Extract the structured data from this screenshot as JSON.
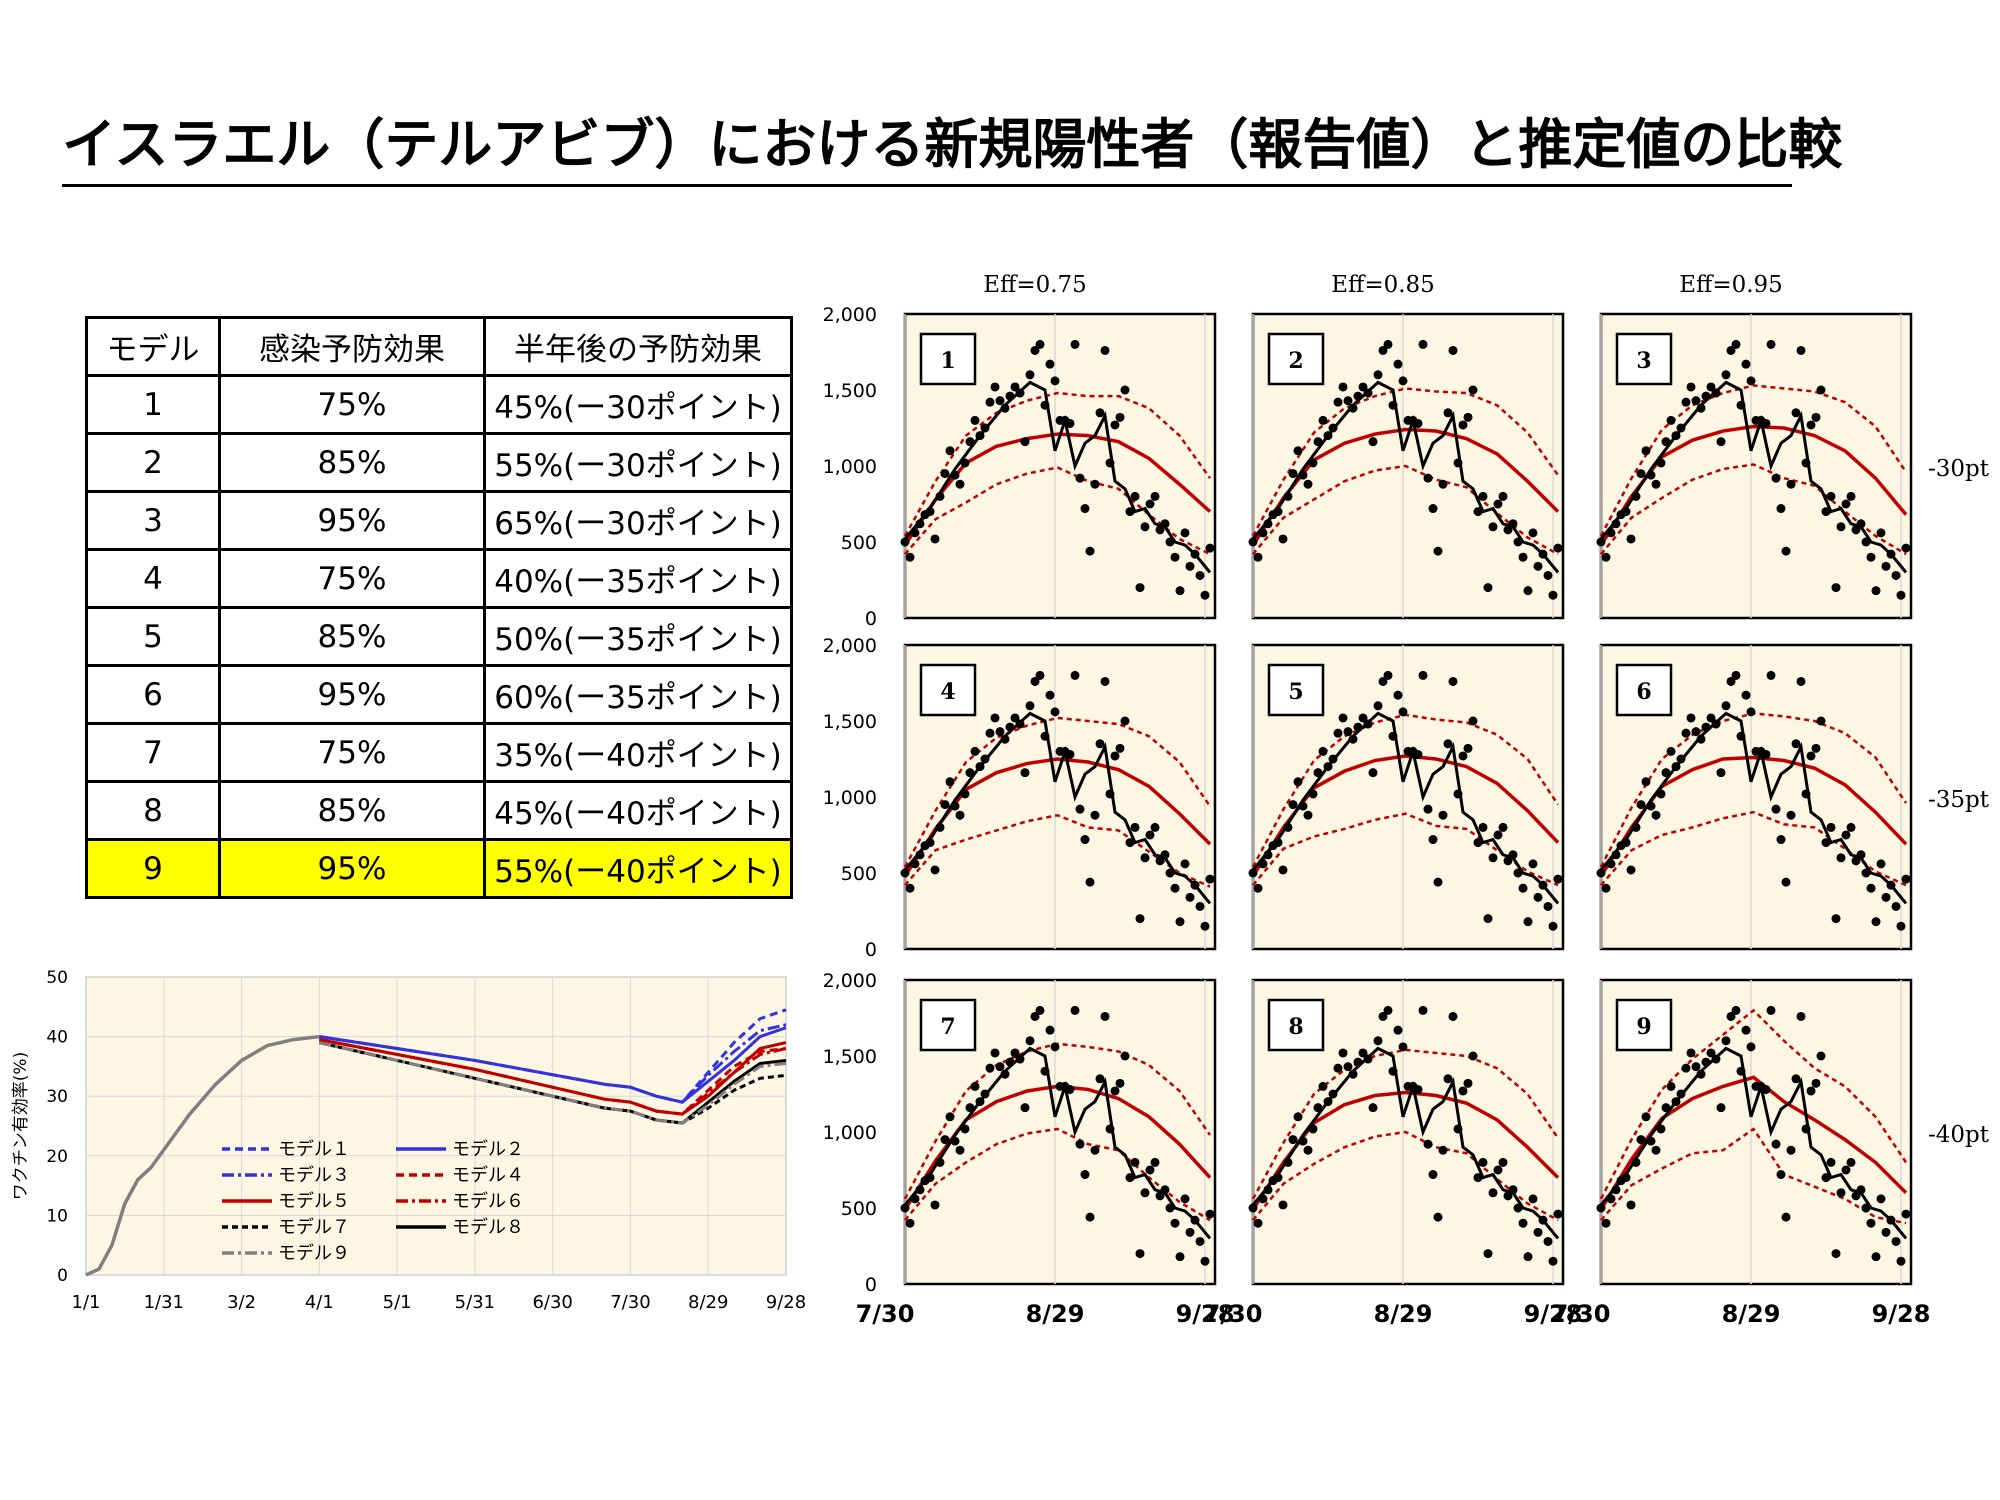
{
  "title": "イスラエル（テルアビブ）における新規陽性者（報告値）と推定値の比較",
  "table": {
    "headers": [
      "モデル",
      "感染予防効果",
      "半年後の予防効果"
    ],
    "rows": [
      [
        "1",
        "75%",
        "45%(ー30ポイント)"
      ],
      [
        "2",
        "85%",
        "55%(ー30ポイント)"
      ],
      [
        "3",
        "95%",
        "65%(ー30ポイント)"
      ],
      [
        "4",
        "75%",
        "40%(ー35ポイント)"
      ],
      [
        "5",
        "85%",
        "50%(ー35ポイント)"
      ],
      [
        "6",
        "95%",
        "60%(ー35ポイント)"
      ],
      [
        "7",
        "75%",
        "35%(ー40ポイント)"
      ],
      [
        "8",
        "85%",
        "45%(ー40ポイント)"
      ],
      [
        "9",
        "95%",
        "55%(ー40ポイント)"
      ]
    ],
    "highlight_row": 8,
    "highlight_color": "#ffff00"
  },
  "colors": {
    "plot_bg": "#fdf6e3",
    "red": "#c00000",
    "blue": "#3333dd",
    "black": "#000000",
    "grey": "#7f7f7f"
  },
  "chart_data": [
    {
      "type": "line",
      "id": "vaccine_efficacy",
      "ylabel": "ワクチン有効率(%)",
      "xticks": [
        "1/1",
        "1/31",
        "3/2",
        "4/1",
        "5/1",
        "5/31",
        "6/30",
        "7/30",
        "8/29",
        "9/28"
      ],
      "xlim": [
        0,
        270
      ],
      "ylim": [
        0,
        50
      ],
      "yticks": [
        "0",
        "10",
        "20",
        "30",
        "40",
        "50"
      ],
      "legend": [
        "モデル１",
        "モデル２",
        "モデル３",
        "モデル４",
        "モデル５",
        "モデル６",
        "モデル７",
        "モデル８",
        "モデル９"
      ],
      "base": {
        "x": [
          0,
          5,
          10,
          15,
          20,
          25,
          30,
          40,
          50,
          60,
          70,
          80,
          90
        ],
        "y": [
          0,
          1,
          5,
          12,
          16,
          18,
          21,
          27,
          32,
          36,
          38.5,
          39.5,
          40
        ]
      },
      "series": [
        {
          "name": "モデル１",
          "style": "dash-blue",
          "x": [
            90,
            150,
            200,
            210,
            220,
            230,
            240,
            250,
            260,
            270
          ],
          "y": [
            40,
            36,
            32,
            31.5,
            30,
            29,
            34,
            39,
            43,
            44.5
          ]
        },
        {
          "name": "モデル２",
          "style": "solid-blue",
          "x": [
            90,
            150,
            200,
            210,
            220,
            230,
            240,
            250,
            260,
            270
          ],
          "y": [
            40,
            36,
            32,
            31.5,
            30,
            29,
            32.5,
            36,
            40,
            41.5
          ]
        },
        {
          "name": "モデル３",
          "style": "dashdot-blue",
          "x": [
            90,
            150,
            200,
            210,
            220,
            230,
            240,
            250,
            260,
            270
          ],
          "y": [
            40,
            36,
            32,
            31.5,
            30,
            29,
            33.5,
            37.5,
            41,
            42
          ]
        },
        {
          "name": "モデル４",
          "style": "dash-red",
          "x": [
            90,
            150,
            200,
            210,
            220,
            230,
            240,
            250,
            260,
            270
          ],
          "y": [
            39.5,
            34.5,
            29.5,
            29,
            27.5,
            27,
            31,
            35,
            37.5,
            38
          ]
        },
        {
          "name": "モデル５",
          "style": "solid-red",
          "x": [
            90,
            150,
            200,
            210,
            220,
            230,
            240,
            250,
            260,
            270
          ],
          "y": [
            39.5,
            34.5,
            29.5,
            29,
            27.5,
            27,
            30,
            34,
            38,
            39
          ]
        },
        {
          "name": "モデル６",
          "style": "dashdot-red",
          "x": [
            90,
            150,
            200,
            210,
            220,
            230,
            240,
            250,
            260,
            270
          ],
          "y": [
            39.5,
            34.5,
            29.5,
            29,
            27.5,
            27,
            30.5,
            34,
            37,
            38
          ]
        },
        {
          "name": "モデル７",
          "style": "dash-black",
          "x": [
            90,
            150,
            200,
            210,
            220,
            230,
            240,
            250,
            260,
            270
          ],
          "y": [
            39,
            33,
            28,
            27.5,
            26,
            25.5,
            28,
            31,
            33,
            33.5
          ]
        },
        {
          "name": "モデル８",
          "style": "solid-black",
          "x": [
            90,
            150,
            200,
            210,
            220,
            230,
            240,
            250,
            260,
            270
          ],
          "y": [
            39,
            33,
            28,
            27.5,
            26,
            25.5,
            29,
            32.5,
            35.5,
            36
          ]
        },
        {
          "name": "モデル９",
          "style": "dashdot-grey",
          "x": [
            90,
            150,
            200,
            210,
            220,
            230,
            240,
            250,
            260,
            270
          ],
          "y": [
            39,
            33,
            28,
            27.5,
            26,
            25.5,
            28.5,
            32,
            35,
            35.5
          ]
        }
      ]
    },
    {
      "type": "scatter+line",
      "id": "new_cases_panels",
      "column_titles": [
        "Eff=0.75",
        "Eff=0.85",
        "Eff=0.95"
      ],
      "row_labels": [
        "-30pt",
        "-35pt",
        "-40pt"
      ],
      "panels": [
        "1",
        "2",
        "3",
        "4",
        "5",
        "6",
        "7",
        "8",
        "9"
      ],
      "xticks": [
        "7/30",
        "8/29",
        "9/28"
      ],
      "xlim": [
        0,
        62
      ],
      "yticks": [
        "0",
        "500",
        "1,000",
        "1,500",
        "2,000"
      ],
      "ylim": [
        0,
        2000
      ],
      "reported_points": {
        "x": [
          0,
          1,
          2,
          3,
          4,
          5,
          6,
          7,
          8,
          9,
          10,
          11,
          12,
          13,
          14,
          15,
          16,
          17,
          18,
          19,
          20,
          21,
          22,
          23,
          24,
          25,
          26,
          27,
          28,
          29,
          30,
          31,
          32,
          33,
          34,
          35,
          36,
          37,
          38,
          39,
          40,
          41,
          42,
          43,
          44,
          45,
          46,
          47,
          48,
          49,
          50,
          51,
          52,
          53,
          54,
          55,
          56,
          57,
          58,
          59,
          60,
          61
        ],
        "y": [
          500,
          400,
          560,
          620,
          680,
          700,
          520,
          800,
          950,
          1100,
          940,
          880,
          1020,
          1160,
          1300,
          1200,
          1250,
          1420,
          1520,
          1430,
          1380,
          1460,
          1520,
          1480,
          1160,
          1600,
          1760,
          1800,
          1400,
          1670,
          1560,
          1300,
          1300,
          1280,
          1800,
          920,
          720,
          440,
          880,
          1350,
          1760,
          1020,
          1270,
          1320,
          1500,
          700,
          800,
          200,
          600,
          750,
          800,
          580,
          620,
          500,
          400,
          180,
          560,
          340,
          420,
          280,
          150,
          460
        ]
      },
      "black_line": {
        "x": [
          0,
          5,
          10,
          15,
          20,
          25,
          28,
          30,
          32,
          34,
          36,
          38,
          40,
          42,
          44,
          46,
          48,
          50,
          52,
          54,
          56,
          58,
          61
        ],
        "y": [
          520,
          720,
          980,
          1200,
          1400,
          1550,
          1500,
          1100,
          1300,
          1000,
          1150,
          1200,
          1330,
          900,
          850,
          700,
          720,
          620,
          600,
          500,
          480,
          420,
          300
        ]
      },
      "model_fits": [
        {
          "model": "1",
          "mean": [
            480,
            780,
            1020,
            1130,
            1180,
            1210,
            1200,
            1160,
            1050,
            880,
            700
          ],
          "upper": [
            540,
            900,
            1200,
            1350,
            1430,
            1480,
            1460,
            1460,
            1380,
            1200,
            920
          ],
          "lower": [
            420,
            650,
            760,
            880,
            950,
            990,
            900,
            850,
            680,
            520,
            420
          ]
        },
        {
          "model": "2",
          "mean": [
            480,
            790,
            1040,
            1150,
            1210,
            1240,
            1230,
            1180,
            1080,
            900,
            700
          ],
          "upper": [
            540,
            910,
            1220,
            1380,
            1460,
            1510,
            1490,
            1480,
            1400,
            1220,
            940
          ],
          "lower": [
            420,
            660,
            780,
            900,
            970,
            1000,
            910,
            860,
            690,
            530,
            420
          ]
        },
        {
          "model": "3",
          "mean": [
            480,
            800,
            1060,
            1170,
            1230,
            1260,
            1250,
            1200,
            1100,
            920,
            680
          ],
          "upper": [
            540,
            920,
            1240,
            1400,
            1480,
            1530,
            1510,
            1490,
            1420,
            1260,
            960
          ],
          "lower": [
            420,
            660,
            790,
            910,
            980,
            1010,
            920,
            870,
            700,
            540,
            420
          ]
        },
        {
          "model": "4",
          "mean": [
            480,
            790,
            1050,
            1160,
            1220,
            1250,
            1230,
            1180,
            1070,
            890,
            690
          ],
          "upper": [
            540,
            910,
            1230,
            1390,
            1470,
            1520,
            1500,
            1480,
            1400,
            1230,
            940
          ],
          "lower": [
            420,
            650,
            720,
            780,
            840,
            880,
            800,
            780,
            640,
            500,
            410
          ]
        },
        {
          "model": "5",
          "mean": [
            480,
            800,
            1060,
            1170,
            1240,
            1270,
            1250,
            1200,
            1090,
            910,
            700
          ],
          "upper": [
            540,
            920,
            1240,
            1400,
            1490,
            1540,
            1510,
            1490,
            1410,
            1250,
            950
          ],
          "lower": [
            420,
            660,
            740,
            790,
            850,
            890,
            810,
            790,
            650,
            510,
            420
          ]
        },
        {
          "model": "6",
          "mean": [
            480,
            800,
            1070,
            1180,
            1250,
            1260,
            1240,
            1190,
            1080,
            900,
            690
          ],
          "upper": [
            540,
            930,
            1250,
            1410,
            1500,
            1550,
            1530,
            1500,
            1420,
            1260,
            960
          ],
          "lower": [
            420,
            650,
            750,
            800,
            860,
            900,
            820,
            800,
            660,
            510,
            420
          ]
        },
        {
          "model": "7",
          "mean": [
            490,
            810,
            1080,
            1200,
            1270,
            1300,
            1280,
            1220,
            1100,
            920,
            700
          ],
          "upper": [
            560,
            940,
            1270,
            1440,
            1530,
            1580,
            1560,
            1530,
            1440,
            1270,
            980
          ],
          "lower": [
            420,
            660,
            800,
            920,
            990,
            1020,
            920,
            880,
            700,
            540,
            420
          ]
        },
        {
          "model": "8",
          "mean": [
            490,
            800,
            1060,
            1180,
            1240,
            1260,
            1240,
            1190,
            1080,
            900,
            700
          ],
          "upper": [
            560,
            930,
            1250,
            1410,
            1500,
            1540,
            1520,
            1500,
            1420,
            1250,
            960
          ],
          "lower": [
            420,
            660,
            790,
            900,
            970,
            1000,
            900,
            860,
            690,
            530,
            420
          ]
        },
        {
          "model": "9",
          "mean": [
            490,
            820,
            1090,
            1220,
            1300,
            1360,
            1200,
            1080,
            950,
            800,
            600
          ],
          "upper": [
            560,
            950,
            1280,
            1480,
            1640,
            1800,
            1600,
            1420,
            1300,
            1100,
            800
          ],
          "lower": [
            420,
            650,
            760,
            860,
            880,
            1020,
            720,
            640,
            560,
            440,
            400
          ]
        }
      ]
    }
  ]
}
